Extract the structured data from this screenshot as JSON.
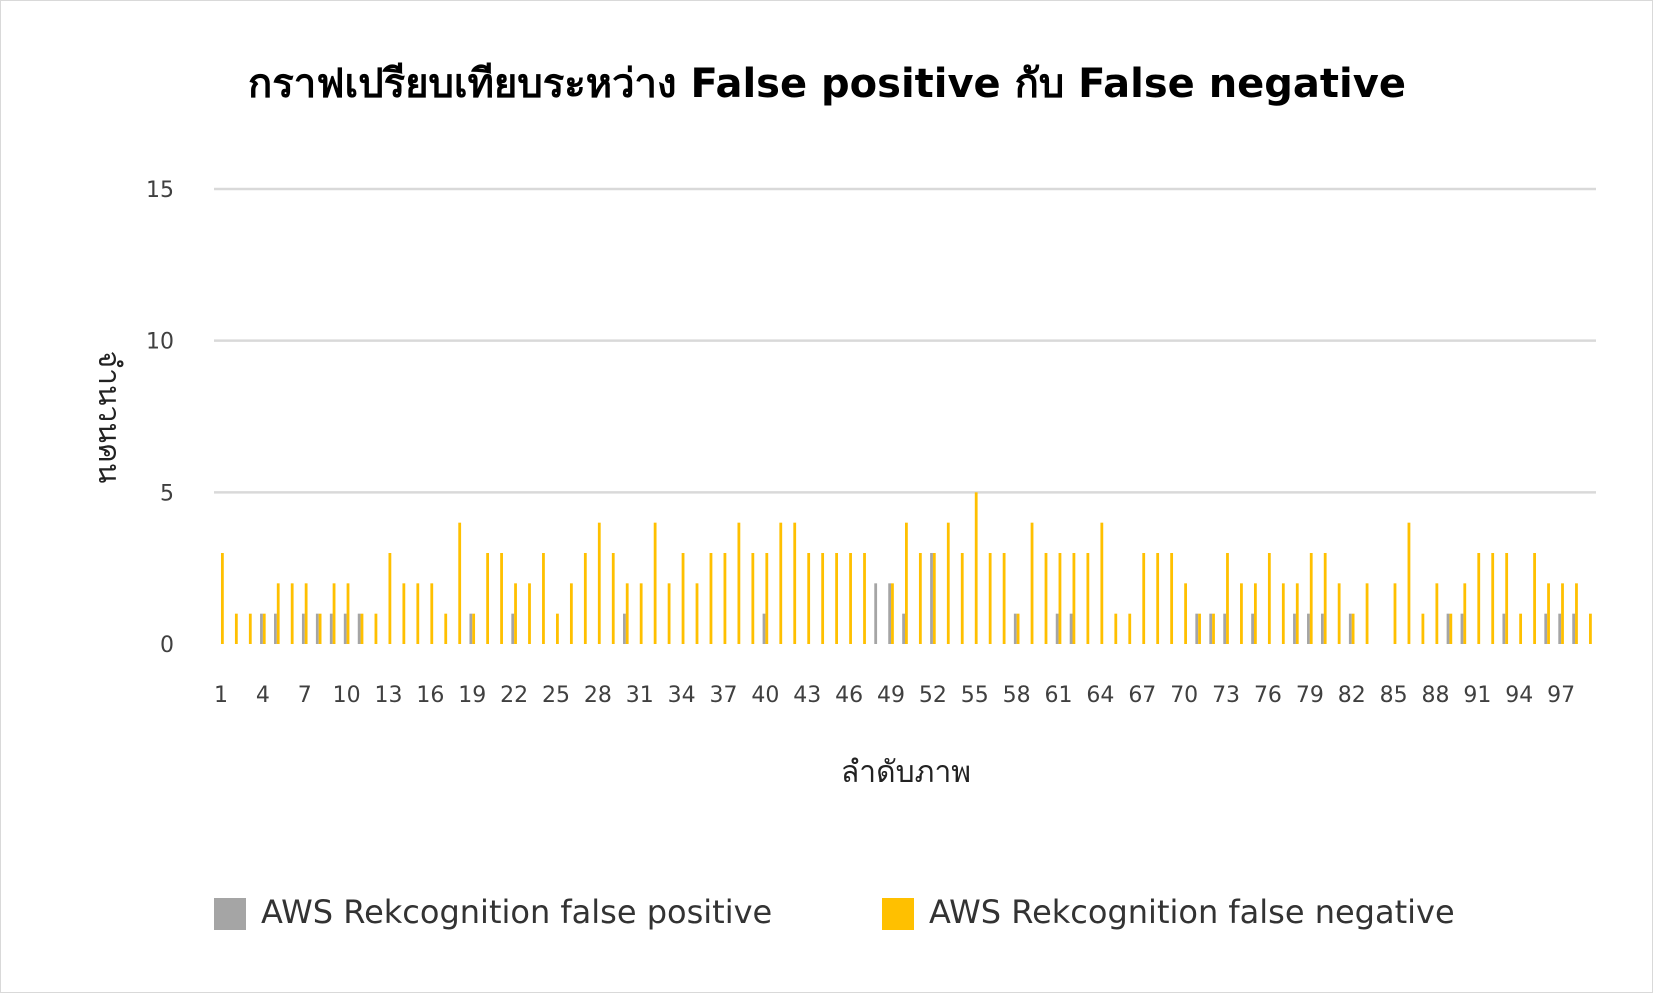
{
  "chart_data": {
    "type": "bar",
    "title": "กราฟเปรียบเทียบระหว่าง False positive กับ False negative",
    "xlabel": "ลำดับภาพ",
    "ylabel": "จำนวนคน",
    "ylim": [
      0,
      15
    ],
    "yticks": [
      "0",
      "5",
      "10",
      "15"
    ],
    "grid": true,
    "legend_position": "bottom",
    "categories": [
      1,
      2,
      3,
      4,
      5,
      6,
      7,
      8,
      9,
      10,
      11,
      12,
      13,
      14,
      15,
      16,
      17,
      18,
      19,
      20,
      21,
      22,
      23,
      24,
      25,
      26,
      27,
      28,
      29,
      30,
      31,
      32,
      33,
      34,
      35,
      36,
      37,
      38,
      39,
      40,
      41,
      42,
      43,
      44,
      45,
      46,
      47,
      48,
      49,
      50,
      51,
      52,
      53,
      54,
      55,
      56,
      57,
      58,
      59,
      60,
      61,
      62,
      63,
      64,
      65,
      66,
      67,
      68,
      69,
      70,
      71,
      72,
      73,
      74,
      75,
      76,
      77,
      78,
      79,
      80,
      81,
      82,
      83,
      84,
      85,
      86,
      87,
      88,
      89,
      90,
      91,
      92,
      93,
      94,
      95,
      96,
      97,
      98,
      99
    ],
    "xtick_labels": [
      "1",
      "4",
      "7",
      "10",
      "13",
      "16",
      "19",
      "22",
      "25",
      "28",
      "31",
      "34",
      "37",
      "40",
      "43",
      "46",
      "49",
      "52",
      "55",
      "58",
      "61",
      "64",
      "67",
      "70",
      "73",
      "76",
      "79",
      "82",
      "85",
      "88",
      "91",
      "94",
      "97"
    ],
    "series": [
      {
        "name": "AWS Rekcognition false positive",
        "color": "#a5a5a5",
        "values": [
          0,
          0,
          0,
          1,
          1,
          0,
          1,
          1,
          1,
          1,
          1,
          0,
          0,
          0,
          0,
          0,
          0,
          0,
          1,
          0,
          0,
          1,
          0,
          0,
          0,
          0,
          0,
          0,
          0,
          1,
          0,
          0,
          0,
          0,
          0,
          0,
          0,
          0,
          0,
          1,
          0,
          0,
          0,
          0,
          0,
          0,
          0,
          2,
          2,
          1,
          0,
          3,
          0,
          0,
          0,
          0,
          0,
          1,
          0,
          0,
          1,
          1,
          0,
          0,
          0,
          0,
          0,
          0,
          0,
          0,
          1,
          1,
          1,
          0,
          1,
          0,
          0,
          1,
          1,
          1,
          0,
          1,
          0,
          0,
          0,
          0,
          0,
          0,
          1,
          1,
          0,
          0,
          1,
          0,
          0,
          1,
          1,
          1,
          0
        ]
      },
      {
        "name": "AWS Rekcognition false negative",
        "color": "#ffc000",
        "values": [
          3,
          1,
          1,
          1,
          2,
          2,
          2,
          1,
          2,
          2,
          1,
          1,
          3,
          2,
          2,
          2,
          1,
          4,
          1,
          3,
          3,
          2,
          2,
          3,
          1,
          2,
          3,
          4,
          3,
          2,
          2,
          4,
          2,
          3,
          2,
          3,
          3,
          4,
          3,
          3,
          4,
          4,
          3,
          3,
          3,
          3,
          3,
          0,
          2,
          4,
          3,
          3,
          4,
          3,
          5,
          3,
          3,
          1,
          4,
          3,
          3,
          3,
          3,
          4,
          1,
          1,
          3,
          3,
          3,
          2,
          1,
          1,
          3,
          2,
          2,
          3,
          2,
          2,
          3,
          3,
          2,
          1,
          2,
          0,
          2,
          4,
          1,
          2,
          1,
          2,
          3,
          3,
          3,
          1,
          3,
          2,
          2,
          2,
          1
        ]
      }
    ]
  }
}
